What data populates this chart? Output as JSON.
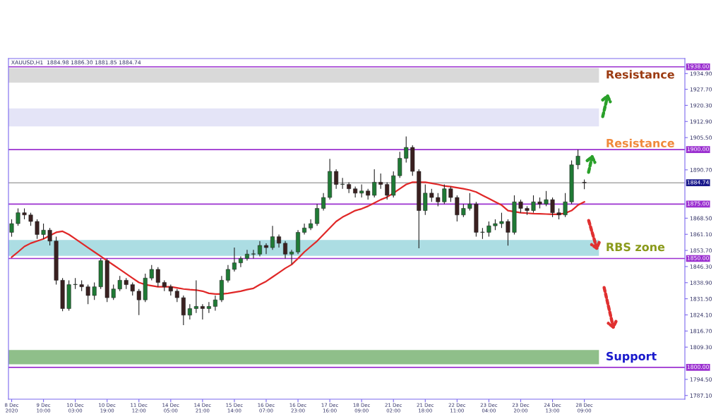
{
  "chart_data": {
    "type": "candlestick",
    "title": "XAUUSD,H1  1884.98 1886.30 1881.85 1884.74",
    "categories": [
      "8 Dec 2020",
      null,
      null,
      null,
      null,
      "9 Dec 10:00",
      null,
      null,
      null,
      null,
      "10 Dec 03:00",
      null,
      null,
      null,
      null,
      "10 Dec 19:00",
      null,
      null,
      null,
      null,
      "11 Dec 12:00",
      null,
      null,
      null,
      null,
      "14 Dec 05:00",
      null,
      null,
      null,
      null,
      "14 Dec 21:00",
      null,
      null,
      null,
      null,
      "15 Dec 14:00",
      null,
      null,
      null,
      null,
      "16 Dec 07:00",
      null,
      null,
      null,
      null,
      "16 Dec 23:00",
      null,
      null,
      null,
      null,
      "17 Dec 16:00",
      null,
      null,
      null,
      null,
      "18 Dec 09:00",
      null,
      null,
      null,
      null,
      "21 Dec 02:00",
      null,
      null,
      null,
      null,
      "21 Dec 18:00",
      null,
      null,
      null,
      null,
      "22 Dec 11:00",
      null,
      null,
      null,
      null,
      "23 Dec 04:00",
      null,
      null,
      null,
      null,
      "23 Dec 20:00",
      null,
      null,
      null,
      null,
      "24 Dec 13:00",
      null,
      null,
      null,
      null,
      "28 Dec 09:00"
    ],
    "ohlc": [
      [
        1862,
        1868,
        1860,
        1866
      ],
      [
        1866,
        1873,
        1865,
        1871
      ],
      [
        1871,
        1873,
        1868,
        1870
      ],
      [
        1870,
        1871,
        1865,
        1867
      ],
      [
        1867,
        1868,
        1859,
        1861
      ],
      [
        1861,
        1866,
        1859,
        1863
      ],
      [
        1863,
        1864,
        1856,
        1858
      ],
      [
        1858,
        1860,
        1838,
        1840
      ],
      [
        1840,
        1841,
        1825.8,
        1827
      ],
      [
        1827,
        1840,
        1826,
        1838
      ],
      [
        1838,
        1841,
        1836,
        1838
      ],
      [
        1838,
        1840,
        1835,
        1837
      ],
      [
        1837,
        1838,
        1829,
        1833
      ],
      [
        1833,
        1839,
        1831,
        1837
      ],
      [
        1837,
        1850,
        1836,
        1849
      ],
      [
        1849,
        1850,
        1830,
        1832
      ],
      [
        1832,
        1838,
        1831,
        1836
      ],
      [
        1836,
        1842,
        1835,
        1840
      ],
      [
        1840,
        1841,
        1836,
        1838
      ],
      [
        1838,
        1839,
        1833,
        1835
      ],
      [
        1835,
        1836,
        1824,
        1831
      ],
      [
        1831,
        1843,
        1830,
        1841
      ],
      [
        1841,
        1847,
        1840,
        1845
      ],
      [
        1845,
        1846,
        1837,
        1839
      ],
      [
        1839,
        1840,
        1835,
        1837
      ],
      [
        1837,
        1838,
        1833,
        1835
      ],
      [
        1835,
        1836,
        1830,
        1832
      ],
      [
        1832,
        1833,
        1819.4,
        1824
      ],
      [
        1824,
        1829,
        1822,
        1827
      ],
      [
        1827,
        1840,
        1825,
        1828
      ],
      [
        1828,
        1829,
        1822,
        1827
      ],
      [
        1827,
        1830,
        1825,
        1828
      ],
      [
        1828,
        1833,
        1826,
        1831
      ],
      [
        1831,
        1842,
        1830,
        1840
      ],
      [
        1840,
        1847,
        1839,
        1845
      ],
      [
        1845,
        1855,
        1844,
        1848
      ],
      [
        1848,
        1851,
        1846,
        1850
      ],
      [
        1850,
        1854,
        1849,
        1852
      ],
      [
        1852,
        1854,
        1850,
        1852
      ],
      [
        1852,
        1858,
        1851,
        1856
      ],
      [
        1856,
        1857,
        1852,
        1855
      ],
      [
        1855,
        1865,
        1854,
        1860
      ],
      [
        1860,
        1861,
        1855,
        1857
      ],
      [
        1857,
        1858,
        1850,
        1852
      ],
      [
        1852,
        1854,
        1847.4,
        1853
      ],
      [
        1853,
        1863,
        1852,
        1862
      ],
      [
        1862,
        1866,
        1861,
        1864
      ],
      [
        1864,
        1868,
        1863,
        1866
      ],
      [
        1866,
        1875,
        1865,
        1873
      ],
      [
        1873,
        1880,
        1872,
        1878
      ],
      [
        1878,
        1895.7,
        1877,
        1890
      ],
      [
        1890,
        1891,
        1882,
        1884
      ],
      [
        1884,
        1887,
        1882,
        1884
      ],
      [
        1884,
        1885,
        1880,
        1882
      ],
      [
        1882,
        1883,
        1878,
        1880
      ],
      [
        1880,
        1884,
        1878,
        1881
      ],
      [
        1881,
        1882,
        1877,
        1879
      ],
      [
        1879,
        1891,
        1878,
        1885
      ],
      [
        1885,
        1889,
        1882,
        1884
      ],
      [
        1884,
        1885,
        1877,
        1879
      ],
      [
        1879,
        1890,
        1878,
        1888
      ],
      [
        1888,
        1899,
        1887,
        1896
      ],
      [
        1896,
        1906,
        1894,
        1901
      ],
      [
        1901,
        1902,
        1888,
        1890
      ],
      [
        1890,
        1891,
        1854.7,
        1872
      ],
      [
        1872,
        1884,
        1870,
        1880
      ],
      [
        1880,
        1882,
        1876,
        1878
      ],
      [
        1878,
        1880,
        1874,
        1876
      ],
      [
        1876,
        1884,
        1875,
        1882
      ],
      [
        1882,
        1883,
        1876,
        1878
      ],
      [
        1878,
        1879,
        1867,
        1870
      ],
      [
        1870,
        1875,
        1869,
        1873
      ],
      [
        1873,
        1880,
        1872,
        1875
      ],
      [
        1875,
        1876,
        1860,
        1862
      ],
      [
        1862,
        1864,
        1859,
        1862
      ],
      [
        1862,
        1867,
        1860,
        1865
      ],
      [
        1865,
        1868,
        1863,
        1866
      ],
      [
        1866,
        1871,
        1864,
        1867
      ],
      [
        1867,
        1868,
        1855.9,
        1862
      ],
      [
        1862,
        1879,
        1861,
        1876
      ],
      [
        1876,
        1877,
        1871,
        1873
      ],
      [
        1873,
        1874,
        1870,
        1872
      ],
      [
        1872,
        1879,
        1871,
        1876
      ],
      [
        1876,
        1878,
        1873,
        1875
      ],
      [
        1875,
        1881,
        1874,
        1877
      ],
      [
        1877,
        1878,
        1869,
        1871
      ],
      [
        1871,
        1873,
        1868,
        1870
      ],
      [
        1870,
        1880,
        1869,
        1876
      ],
      [
        1876,
        1895,
        1875,
        1893
      ],
      [
        1893,
        1900,
        1891,
        1897
      ],
      [
        1884.98,
        1886.3,
        1881.85,
        1884.74
      ]
    ],
    "series": [
      {
        "type": "line",
        "color": "#e02828",
        "values": [
          1850.6,
          1853,
          1855.5,
          1857,
          1858,
          1859,
          1860.5,
          1862,
          1862.5,
          1861,
          1859,
          1857,
          1855,
          1853,
          1851,
          1849,
          1847,
          1845,
          1843,
          1841,
          1839,
          1838,
          1837.5,
          1837,
          1837,
          1837,
          1836.5,
          1836,
          1835.7,
          1835.5,
          1835,
          1834,
          1833.7,
          1833.7,
          1834,
          1834.5,
          1835,
          1835.7,
          1836.3,
          1838,
          1839.5,
          1841.5,
          1843.5,
          1845.5,
          1847.2,
          1850,
          1853,
          1855.5,
          1858,
          1861,
          1864,
          1867,
          1869,
          1870.5,
          1872,
          1872.8,
          1874,
          1875.5,
          1877,
          1878.2,
          1880,
          1882,
          1884,
          1885,
          1885,
          1885,
          1884.5,
          1884,
          1883.3,
          1883,
          1882.5,
          1882,
          1881.4,
          1880.5,
          1879,
          1877.5,
          1876,
          1874.5,
          1872,
          1871.5,
          1871,
          1870.8,
          1870.6,
          1870.5,
          1870.4,
          1870.3,
          1870.3,
          1870.8,
          1872,
          1874.5,
          1876
        ]
      }
    ],
    "ylim": [
      1785.4,
      1941.8
    ],
    "yticks": [
      {
        "value": 1934.9,
        "label": "1934.90"
      },
      {
        "value": 1927.7,
        "label": "1927.70"
      },
      {
        "value": 1920.3,
        "label": "1920.30"
      },
      {
        "value": 1912.9,
        "label": "1912.90"
      },
      {
        "value": 1905.5,
        "label": "1905.50"
      },
      {
        "value": 1890.7,
        "label": "1890.70"
      },
      {
        "value": 1868.5,
        "label": "1868.50"
      },
      {
        "value": 1861.1,
        "label": "1861.10"
      },
      {
        "value": 1853.7,
        "label": "1853.70"
      },
      {
        "value": 1846.3,
        "label": "1846.30"
      },
      {
        "value": 1838.9,
        "label": "1838.90"
      },
      {
        "value": 1831.5,
        "label": "1831.50"
      },
      {
        "value": 1824.1,
        "label": "1824.10"
      },
      {
        "value": 1816.7,
        "label": "1816.70"
      },
      {
        "value": 1809.3,
        "label": "1809.30"
      },
      {
        "value": 1794.5,
        "label": "1794.50"
      },
      {
        "value": 1787.1,
        "label": "1787.10"
      }
    ],
    "ref_lines": [
      {
        "axis": "y",
        "value": 1938,
        "label": "1938.00",
        "color": "#9b30d0"
      },
      {
        "axis": "y",
        "value": 1900,
        "label": "1900.00",
        "color": "#9b30d0"
      },
      {
        "axis": "y",
        "value": 1884.74,
        "label": "1884.74",
        "color": "#a8a8a8"
      },
      {
        "axis": "y",
        "value": 1875,
        "label": "1875.00",
        "color": "#9b30d0"
      },
      {
        "axis": "y",
        "value": 1850,
        "label": "1850.00",
        "color": "#9b30d0"
      },
      {
        "axis": "y",
        "value": 1800,
        "label": "1800.00",
        "color": "#9b30d0"
      }
    ],
    "bands": [
      {
        "axis": "y",
        "from": 1930.7,
        "to": 1937.4,
        "label": "Resistance",
        "color": "#d9d9d9"
      },
      {
        "axis": "y",
        "from": 1910.6,
        "to": 1918.9,
        "color": "#e4e4f7"
      },
      {
        "axis": "y",
        "from": 1851.2,
        "to": 1858.5,
        "label": "RBS zone",
        "color": "#acdde3"
      },
      {
        "axis": "y",
        "from": 1801.4,
        "to": 1808.0,
        "label": "Support",
        "color": "#8fbf8a"
      }
    ],
    "annotations": [
      {
        "text": "Resistance",
        "y": 1900
      }
    ],
    "grid": false,
    "legend": false
  }
}
